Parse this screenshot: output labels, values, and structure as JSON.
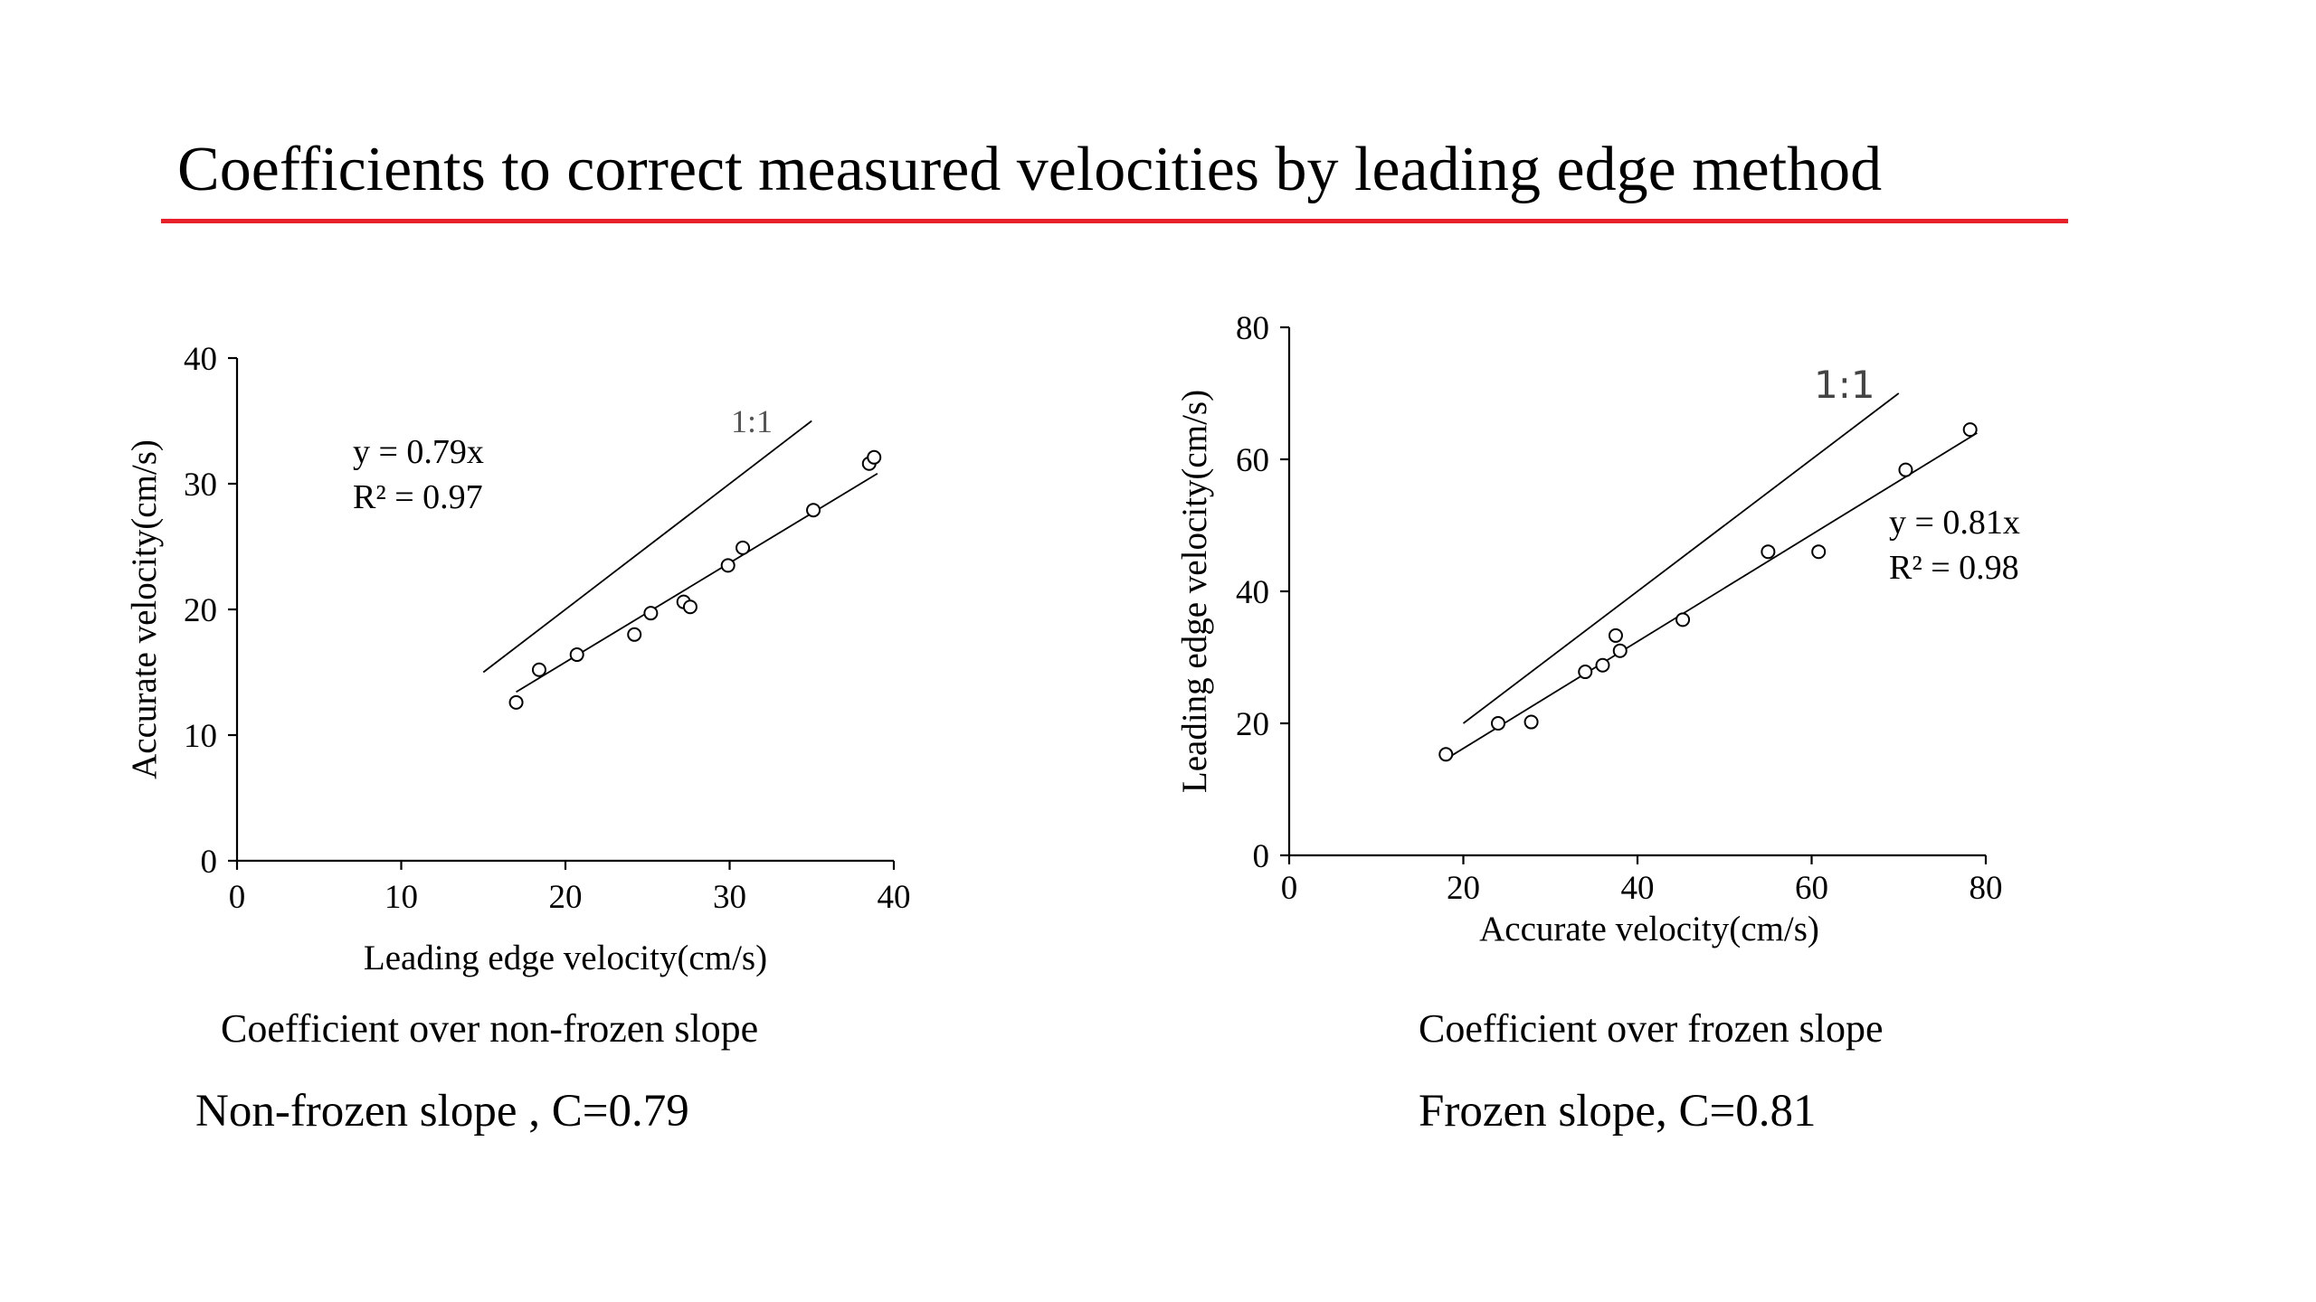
{
  "slide": {
    "title": "Coefficients to correct measured velocities by leading edge method",
    "accent_color": "#e8202a"
  },
  "captions": {
    "left": "Coefficient over non-frozen slope",
    "right": "Coefficient over frozen slope"
  },
  "summaries": {
    "left": "Non-frozen slope , C=0.79",
    "right": "Frozen slope,  C=0.81"
  },
  "chart_data": [
    {
      "type": "scatter",
      "xlabel": "Leading edge velocity(cm/s)",
      "ylabel": "Accurate velocity(cm/s)",
      "xlim": [
        0,
        40
      ],
      "ylim": [
        0,
        40
      ],
      "xticks": [
        0,
        10,
        20,
        30,
        40
      ],
      "yticks": [
        0,
        10,
        20,
        30,
        40
      ],
      "grid": false,
      "points": [
        {
          "x": 17.0,
          "y": 12.6
        },
        {
          "x": 18.4,
          "y": 15.2
        },
        {
          "x": 20.7,
          "y": 16.4
        },
        {
          "x": 24.2,
          "y": 18.0
        },
        {
          "x": 25.2,
          "y": 19.7
        },
        {
          "x": 27.2,
          "y": 20.6
        },
        {
          "x": 27.6,
          "y": 20.2
        },
        {
          "x": 29.9,
          "y": 23.5
        },
        {
          "x": 30.8,
          "y": 24.9
        },
        {
          "x": 35.1,
          "y": 27.9
        },
        {
          "x": 38.5,
          "y": 31.6
        },
        {
          "x": 38.8,
          "y": 32.1
        }
      ],
      "trendline": {
        "slope": 0.79,
        "x_range": [
          17,
          39
        ],
        "equation": "y = 0.79x",
        "r2": "R² = 0.97"
      },
      "reference_line": {
        "label": "1:1",
        "x_range": [
          15,
          35
        ]
      }
    },
    {
      "type": "scatter",
      "xlabel": "Accurate velocity(cm/s)",
      "ylabel": "Leading edge velocity(cm/s)",
      "xlim": [
        0,
        80
      ],
      "ylim": [
        0,
        80
      ],
      "xticks": [
        0,
        20,
        40,
        60,
        80
      ],
      "yticks": [
        0,
        20,
        40,
        60,
        80
      ],
      "grid": false,
      "points": [
        {
          "x": 18.0,
          "y": 15.3
        },
        {
          "x": 24.0,
          "y": 20.0
        },
        {
          "x": 27.8,
          "y": 20.2
        },
        {
          "x": 34.0,
          "y": 27.8
        },
        {
          "x": 36.0,
          "y": 28.8
        },
        {
          "x": 37.5,
          "y": 33.3
        },
        {
          "x": 38.0,
          "y": 31.0
        },
        {
          "x": 45.2,
          "y": 35.7
        },
        {
          "x": 55.0,
          "y": 46.0
        },
        {
          "x": 60.8,
          "y": 46.0
        },
        {
          "x": 70.8,
          "y": 58.4
        },
        {
          "x": 78.2,
          "y": 64.5
        }
      ],
      "trendline": {
        "slope": 0.81,
        "x_range": [
          18,
          79
        ],
        "equation": "y = 0.81x",
        "r2": "R² = 0.98"
      },
      "reference_line": {
        "label": "1:1",
        "x_range": [
          20,
          70
        ]
      }
    }
  ]
}
